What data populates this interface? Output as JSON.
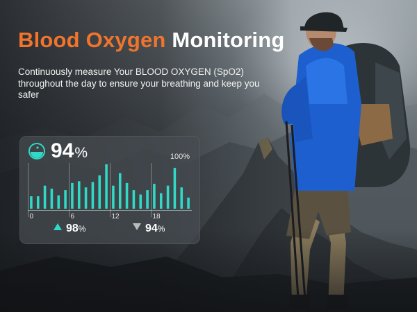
{
  "headline": {
    "accent": "Blood Oxygen",
    "rest": "Monitoring"
  },
  "subtitle": "Continuously measure Your BLOOD OXYGEN (SpO2) throughout the day to ensure your breathing and keep you safer",
  "monitor": {
    "current_value": "94",
    "current_unit": "%",
    "max_label": "100%",
    "highest_value": "98",
    "highest_unit": "%",
    "lowest_value": "94",
    "lowest_unit": "%",
    "icon": "blood-drop-gauge-icon",
    "accent_color": "#2fd9c6"
  },
  "chart_data": {
    "type": "bar",
    "x_ticks": [
      "0",
      "6",
      "12",
      "18"
    ],
    "values": [
      0.28,
      0.28,
      0.52,
      0.45,
      0.3,
      0.42,
      0.58,
      0.62,
      0.48,
      0.6,
      0.75,
      1.0,
      0.52,
      0.8,
      0.58,
      0.42,
      0.32,
      0.42,
      0.56,
      0.35,
      0.52,
      0.92,
      0.48,
      0.25
    ],
    "grid": true
  }
}
